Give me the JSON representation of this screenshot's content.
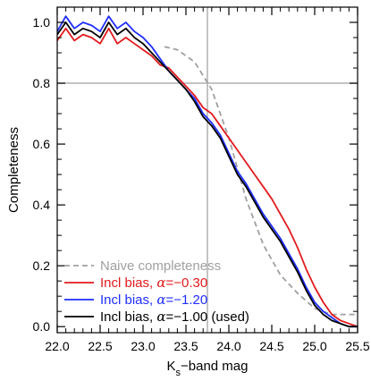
{
  "chart_data": {
    "type": "line",
    "xlabel": "K",
    "xlabel_sub": "s",
    "xlabel_rest": "−band mag",
    "ylabel": "Completeness",
    "xlim": [
      22.0,
      25.5
    ],
    "ylim": [
      -0.02,
      1.05
    ],
    "x_ticks": [
      "22.0",
      "22.5",
      "23.0",
      "23.5",
      "24.0",
      "24.5",
      "25.0",
      "25.5"
    ],
    "y_ticks": [
      "0.0",
      "0.2",
      "0.4",
      "0.6",
      "0.8",
      "1.0"
    ],
    "reference_lines": {
      "x": 23.75,
      "y": 0.8
    },
    "grid": false,
    "legend_position": "bottom-left",
    "series": [
      {
        "name": "Naive completeness",
        "color": "#a0a0a0",
        "dash": true,
        "x": [
          23.25,
          23.4,
          23.6,
          23.8,
          24.0,
          24.2,
          24.4,
          24.6,
          24.8,
          25.0,
          25.2,
          25.5
        ],
        "y": [
          0.92,
          0.91,
          0.87,
          0.78,
          0.62,
          0.42,
          0.27,
          0.17,
          0.11,
          0.06,
          0.04,
          0.04
        ]
      },
      {
        "name": "Incl bias, α=−0.30",
        "label_prefix": "Incl bias, ",
        "label_alpha": "α",
        "label_value": "=−0.30",
        "label_suffix": "",
        "color": "#e31a1c",
        "x": [
          22.0,
          22.1,
          22.2,
          22.3,
          22.4,
          22.5,
          22.6,
          22.7,
          22.8,
          22.9,
          23.0,
          23.1,
          23.2,
          23.3,
          23.4,
          23.5,
          23.6,
          23.7,
          23.8,
          23.9,
          24.0,
          24.1,
          24.2,
          24.3,
          24.4,
          24.5,
          24.6,
          24.7,
          24.8,
          24.9,
          25.0,
          25.1,
          25.2,
          25.3,
          25.4,
          25.5
        ],
        "y": [
          0.94,
          0.98,
          0.94,
          0.96,
          0.95,
          0.93,
          0.98,
          0.93,
          0.95,
          0.93,
          0.91,
          0.89,
          0.86,
          0.85,
          0.82,
          0.79,
          0.76,
          0.72,
          0.7,
          0.66,
          0.62,
          0.58,
          0.54,
          0.5,
          0.46,
          0.42,
          0.37,
          0.32,
          0.26,
          0.19,
          0.13,
          0.08,
          0.04,
          0.02,
          0.01,
          0.0
        ]
      },
      {
        "name": "Incl bias, α=−1.20",
        "label_prefix": "Incl bias, ",
        "label_alpha": "α",
        "label_value": "=−1.20",
        "label_suffix": "",
        "color": "#1f2fff",
        "x": [
          22.0,
          22.1,
          22.2,
          22.3,
          22.4,
          22.5,
          22.6,
          22.7,
          22.8,
          22.9,
          23.0,
          23.1,
          23.2,
          23.3,
          23.4,
          23.5,
          23.6,
          23.7,
          23.8,
          23.9,
          24.0,
          24.1,
          24.2,
          24.3,
          24.4,
          24.5,
          24.6,
          24.7,
          24.8,
          24.9,
          25.0,
          25.1,
          25.2,
          25.3,
          25.4,
          25.5
        ],
        "y": [
          0.97,
          1.02,
          0.98,
          1.0,
          0.99,
          0.97,
          1.02,
          0.98,
          1.0,
          0.97,
          0.95,
          0.92,
          0.88,
          0.84,
          0.81,
          0.78,
          0.75,
          0.7,
          0.67,
          0.63,
          0.57,
          0.51,
          0.47,
          0.42,
          0.37,
          0.33,
          0.29,
          0.24,
          0.19,
          0.13,
          0.08,
          0.05,
          0.03,
          0.01,
          0.0,
          0.0
        ]
      },
      {
        "name": "Incl bias, α=−1.00 (used)",
        "label_prefix": "Incl bias, ",
        "label_alpha": "α",
        "label_value": "=−1.00",
        "label_suffix": " (used)",
        "color": "#000000",
        "x": [
          22.0,
          22.1,
          22.2,
          22.3,
          22.4,
          22.5,
          22.6,
          22.7,
          22.8,
          22.9,
          23.0,
          23.1,
          23.2,
          23.3,
          23.4,
          23.5,
          23.6,
          23.7,
          23.8,
          23.9,
          24.0,
          24.1,
          24.2,
          24.3,
          24.4,
          24.5,
          24.6,
          24.7,
          24.8,
          24.9,
          25.0,
          25.1,
          25.2,
          25.3,
          25.4,
          25.5
        ],
        "y": [
          0.96,
          1.0,
          0.96,
          0.98,
          0.97,
          0.95,
          1.0,
          0.96,
          0.98,
          0.95,
          0.93,
          0.9,
          0.87,
          0.84,
          0.81,
          0.78,
          0.74,
          0.69,
          0.66,
          0.62,
          0.56,
          0.5,
          0.46,
          0.41,
          0.36,
          0.32,
          0.28,
          0.23,
          0.18,
          0.12,
          0.07,
          0.04,
          0.02,
          0.01,
          0.0,
          0.0
        ]
      }
    ]
  }
}
